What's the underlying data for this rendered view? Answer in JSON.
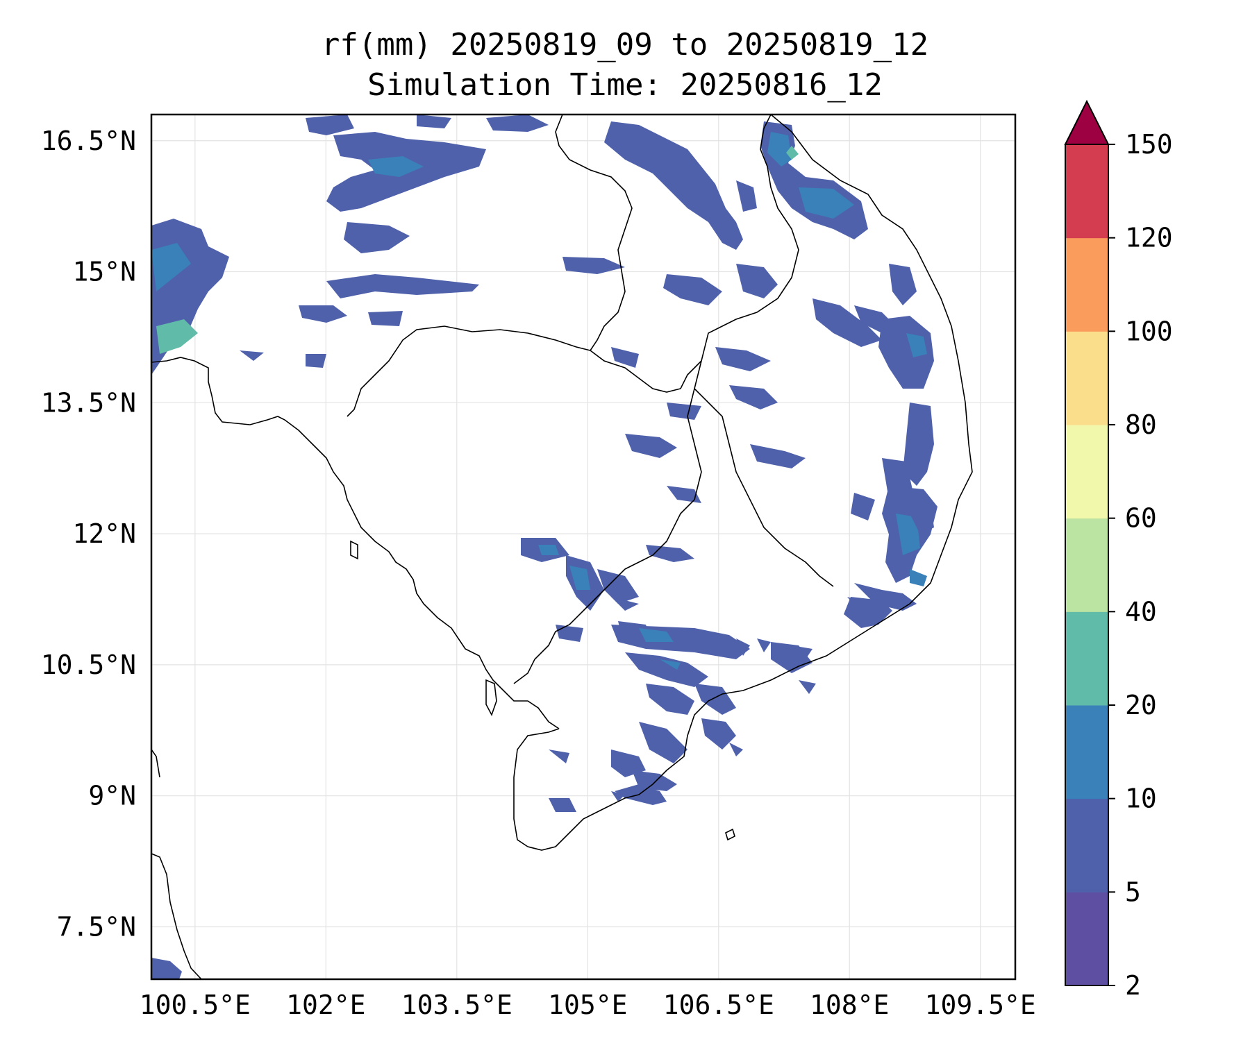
{
  "title": {
    "line1": "rf(mm) 20250819_09 to 20250819_12",
    "line2": "Simulation Time: 20250816_12"
  },
  "map": {
    "lon_range": [
      100.0,
      109.9
    ],
    "lat_range": [
      6.9,
      16.8
    ],
    "lon_ticks": [
      "100.5°E",
      "102°E",
      "103.5°E",
      "105°E",
      "106.5°E",
      "108°E",
      "109.5°E"
    ],
    "lon_tick_values": [
      100.5,
      102,
      103.5,
      105,
      106.5,
      108,
      109.5
    ],
    "lat_ticks": [
      "16.5°N",
      "15°N",
      "13.5°N",
      "12°N",
      "10.5°N",
      "9°N",
      "7.5°N"
    ],
    "lat_tick_values": [
      16.5,
      15,
      13.5,
      12,
      10.5,
      9,
      7.5
    ],
    "gridlines": true
  },
  "colorbar": {
    "levels": [
      "2",
      "5",
      "10",
      "20",
      "40",
      "60",
      "80",
      "100",
      "120",
      "150"
    ],
    "colors": [
      "#5e4fa2",
      "#4f61ab",
      "#3a80b9",
      "#60bba9",
      "#bbe3a1",
      "#f1f8ac",
      "#fbde8c",
      "#f99c5c",
      "#d43d50",
      "#9e0142"
    ],
    "extend": "max"
  }
}
